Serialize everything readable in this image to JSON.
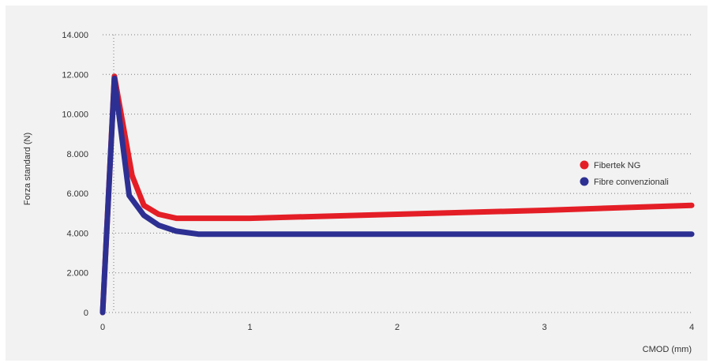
{
  "header": {
    "cropped_text": ""
  },
  "chart_data": {
    "type": "line",
    "title": "",
    "xlabel": "CMOD (mm)",
    "ylabel": "Forza standard (N)",
    "xlim": [
      0,
      4
    ],
    "ylim": [
      0,
      14000
    ],
    "x_ticks": [
      0,
      1,
      2,
      3,
      4
    ],
    "x_tick_labels": [
      "0",
      "1",
      "2",
      "3",
      "4"
    ],
    "y_ticks": [
      0,
      2000,
      4000,
      6000,
      8000,
      10000,
      12000,
      14000
    ],
    "y_tick_labels": [
      "0",
      "2.000",
      "4.000",
      "6.000",
      "8.000",
      "10.000",
      "12.000",
      "14.000"
    ],
    "grid": "horizontal-dotted",
    "legend_position": "right",
    "series": [
      {
        "name": "Fibertek NG",
        "color": "#e41e26",
        "x": [
          0,
          0.08,
          0.2,
          0.28,
          0.38,
          0.5,
          0.7,
          1,
          2,
          3,
          4
        ],
        "y": [
          0,
          11900,
          6900,
          5400,
          4950,
          4750,
          4750,
          4750,
          4950,
          5150,
          5400
        ]
      },
      {
        "name": "Fibre convenzionali",
        "color": "#2d3092",
        "x": [
          0,
          0.08,
          0.18,
          0.28,
          0.38,
          0.5,
          0.65,
          1,
          2,
          3,
          4
        ],
        "y": [
          0,
          11800,
          5900,
          4900,
          4400,
          4100,
          3950,
          3950,
          3950,
          3950,
          3950
        ]
      }
    ]
  }
}
